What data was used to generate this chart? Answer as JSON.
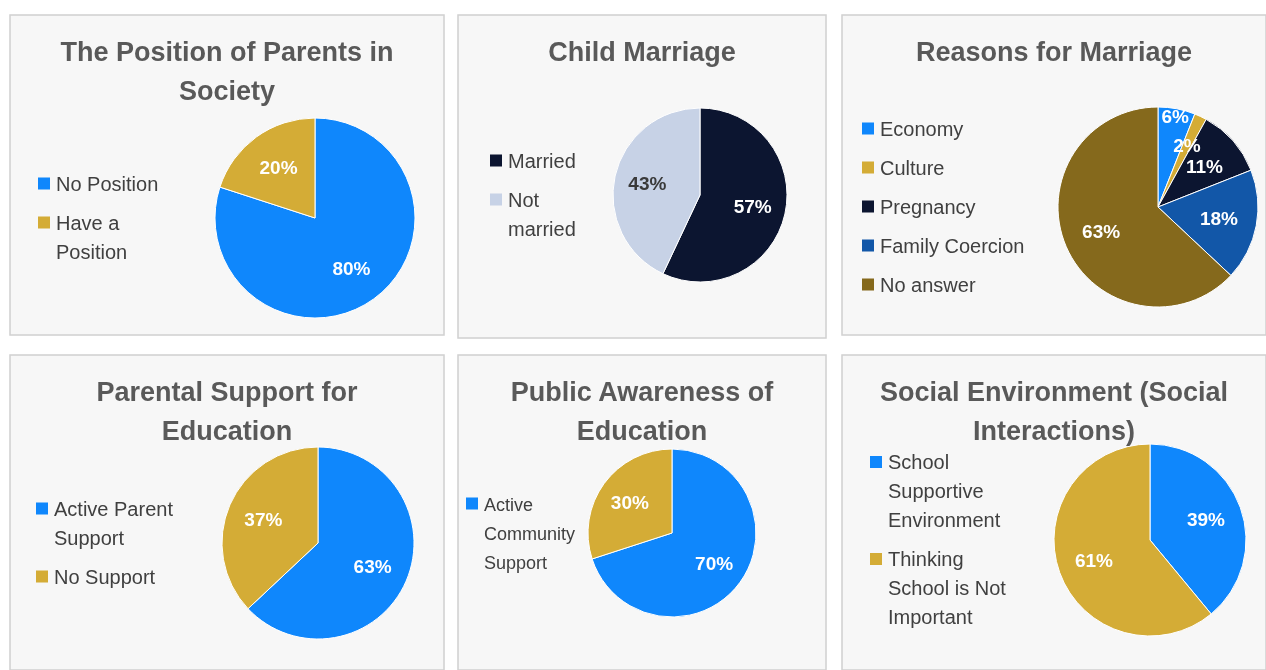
{
  "chart_data": [
    {
      "type": "pie",
      "title": "The Position of Parents in Society",
      "categories": [
        "No Position",
        "Have a Position"
      ],
      "values": [
        80,
        20
      ],
      "colors": [
        "#0f87fc",
        "#d4ac36"
      ],
      "value_labels": [
        "80%",
        "20%"
      ],
      "legend": "left"
    },
    {
      "type": "pie",
      "title": "Child Marriage",
      "categories": [
        "Married",
        "Not married"
      ],
      "values": [
        57,
        43
      ],
      "colors": [
        "#0c1530",
        "#c7d2e6"
      ],
      "value_labels": [
        "57%",
        "43%"
      ],
      "legend": "left"
    },
    {
      "type": "pie",
      "title": "Reasons for Marriage",
      "categories": [
        "Economy",
        "Culture",
        "Pregnancy",
        "Family Coercion",
        "No answer"
      ],
      "values": [
        6,
        2,
        11,
        18,
        63
      ],
      "colors": [
        "#0f87fc",
        "#d4ac36",
        "#0c1530",
        "#1257a8",
        "#85691c"
      ],
      "value_labels": [
        "6%",
        "2%",
        "11%",
        "18%",
        "63%"
      ],
      "legend": "left"
    },
    {
      "type": "pie",
      "title": "Parental Support for Education",
      "categories": [
        "Active Parent Support",
        "No Support"
      ],
      "values": [
        63,
        37
      ],
      "colors": [
        "#0f87fc",
        "#d4ac36"
      ],
      "value_labels": [
        "63%",
        "37%"
      ],
      "legend": "left"
    },
    {
      "type": "pie",
      "title": "Public Awareness of Education",
      "categories": [
        "Active Community Support",
        null
      ],
      "values": [
        70,
        30
      ],
      "colors": [
        "#0f87fc",
        "#d4ac36"
      ],
      "value_labels": [
        "70%",
        "30%"
      ],
      "legend": "left"
    },
    {
      "type": "pie",
      "title": "Social Environment (Social Interactions)",
      "categories": [
        "School Supportive Environment",
        "Thinking School is Not Important"
      ],
      "values": [
        39,
        61
      ],
      "colors": [
        "#0f87fc",
        "#d4ac36"
      ],
      "value_labels": [
        "39%",
        "61%"
      ],
      "legend": "left"
    }
  ]
}
